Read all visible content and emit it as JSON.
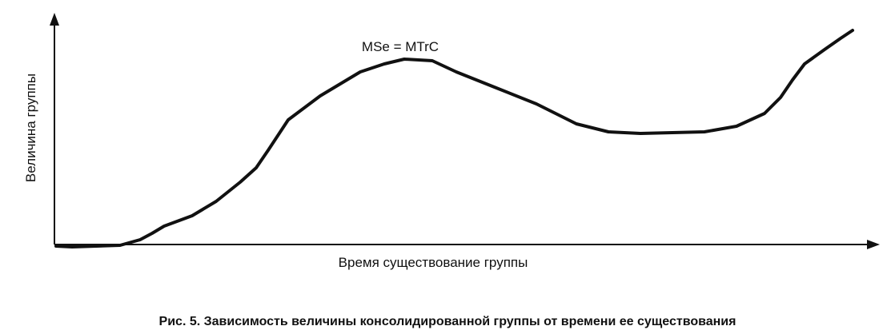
{
  "diagram": {
    "y_axis_label": "Величина группы",
    "x_axis_label": "Время существование группы",
    "annotation": "MSe = MTrC",
    "caption": "Рис. 5. Зависимость величины консолидированной группы от времени ее существования"
  }
}
